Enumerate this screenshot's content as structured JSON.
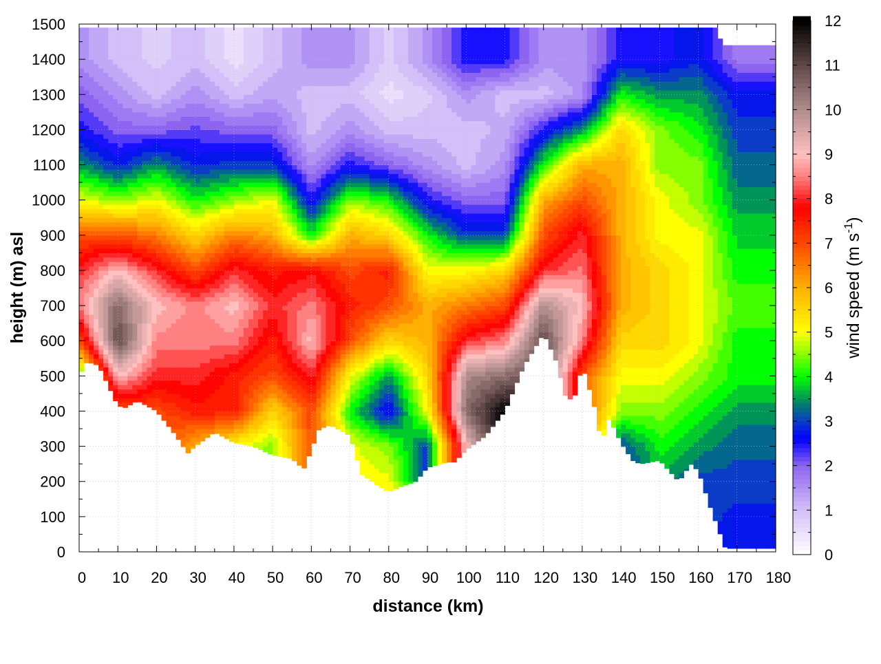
{
  "chart_data": {
    "type": "heatmap",
    "xlabel": "distance (km)",
    "ylabel": "height (m) asl",
    "colorbar_label": {
      "text": "wind speed (m s",
      "superscript": "-1",
      "close": ")"
    },
    "xlim": [
      0,
      180
    ],
    "ylim": [
      0,
      1500
    ],
    "clim": [
      0,
      12
    ],
    "x_ticks": [
      "0",
      "10",
      "20",
      "30",
      "40",
      "50",
      "60",
      "70",
      "80",
      "90",
      "100",
      "110",
      "120",
      "130",
      "140",
      "150",
      "160",
      "170",
      "180"
    ],
    "y_ticks": [
      "0",
      "100",
      "200",
      "300",
      "400",
      "500",
      "600",
      "700",
      "800",
      "900",
      "1000",
      "1100",
      "1200",
      "1300",
      "1400",
      "1500"
    ],
    "c_ticks": [
      "0",
      "1",
      "2",
      "3",
      "4",
      "5",
      "6",
      "7",
      "8",
      "9",
      "10",
      "11",
      "12"
    ],
    "grid": true,
    "colormap": [
      [
        0,
        "#ffffff"
      ],
      [
        1,
        "#d4c0f8"
      ],
      [
        2,
        "#8c64f0"
      ],
      [
        2.6,
        "#0000ff"
      ],
      [
        3,
        "#0a3cc8"
      ],
      [
        3.4,
        "#00806a"
      ],
      [
        4,
        "#00ff00"
      ],
      [
        4.6,
        "#a0ff00"
      ],
      [
        5,
        "#ffff00"
      ],
      [
        6,
        "#ffb000"
      ],
      [
        7,
        "#ff4800"
      ],
      [
        7.8,
        "#ff0000"
      ],
      [
        8.5,
        "#ff8080"
      ],
      [
        9,
        "#ffc0c0"
      ],
      [
        10,
        "#b08c8c"
      ],
      [
        11,
        "#604848"
      ],
      [
        12,
        "#000000"
      ]
    ],
    "terrain": {
      "distance": [
        0,
        2,
        5,
        10,
        12,
        15,
        20,
        25,
        28,
        30,
        35,
        40,
        45,
        50,
        55,
        58,
        60,
        62,
        65,
        70,
        73,
        77,
        80,
        83,
        87,
        90,
        95,
        97,
        100,
        105,
        110,
        115,
        120,
        123,
        126,
        128,
        130,
        133,
        135,
        137,
        140,
        143,
        145,
        150,
        155,
        158,
        160,
        163,
        167,
        170,
        180
      ],
      "height": [
        500,
        540,
        530,
        415,
        410,
        430,
        400,
        330,
        280,
        300,
        340,
        310,
        300,
        275,
        265,
        235,
        290,
        350,
        360,
        330,
        220,
        190,
        170,
        185,
        200,
        240,
        255,
        255,
        290,
        330,
        400,
        530,
        620,
        550,
        430,
        440,
        530,
        420,
        310,
        380,
        310,
        260,
        250,
        260,
        200,
        250,
        230,
        130,
        10,
        10,
        10
      ]
    },
    "data_top": {
      "distance": [
        0,
        165,
        166,
        180
      ],
      "height": [
        1490,
        1490,
        1440,
        1440
      ]
    },
    "wind_speed": {
      "distance": [
        0,
        10,
        20,
        30,
        40,
        50,
        60,
        70,
        80,
        90,
        100,
        110,
        120,
        130,
        140,
        150,
        160,
        170,
        180
      ],
      "height": [
        0,
        100,
        200,
        300,
        400,
        500,
        600,
        700,
        800,
        900,
        1000,
        1100,
        1200,
        1300,
        1400,
        1500
      ],
      "values_by_distance": [
        [
          null,
          null,
          null,
          null,
          null,
          4,
          7,
          8.5,
          8,
          7,
          5,
          3.5,
          2.5,
          2,
          1.5,
          1.5
        ],
        [
          null,
          null,
          null,
          null,
          7,
          9,
          11,
          10.5,
          9,
          7,
          4.5,
          2.8,
          2,
          1.5,
          1,
          1
        ],
        [
          null,
          null,
          null,
          null,
          7,
          8,
          8.5,
          9,
          8,
          6.5,
          5,
          3.5,
          2,
          1,
          0.8,
          0.8
        ],
        [
          null,
          null,
          null,
          6,
          7.5,
          8,
          8.5,
          8.5,
          7,
          5.5,
          4,
          2.8,
          2.2,
          1.5,
          1,
          1
        ],
        [
          null,
          null,
          null,
          5,
          7.5,
          7.5,
          8.5,
          9,
          8,
          6.5,
          4.5,
          3,
          2,
          1,
          0.5,
          0.5
        ],
        [
          null,
          null,
          null,
          4.5,
          5.5,
          7,
          7.5,
          8,
          7.5,
          6,
          5,
          3,
          2,
          1.3,
          1,
          1
        ],
        [
          null,
          null,
          null,
          7,
          7,
          8,
          9,
          8.5,
          7.8,
          4,
          2.5,
          1.5,
          1,
          1,
          1.5,
          1.5
        ],
        [
          null,
          null,
          null,
          5,
          4,
          5,
          7,
          7.5,
          7,
          6,
          4.5,
          2.5,
          1.5,
          1,
          1.5,
          1.5
        ],
        [
          null,
          null,
          5,
          4.5,
          2.5,
          3.5,
          5.5,
          7,
          7.5,
          5.5,
          4,
          2,
          1,
          0.5,
          0.8,
          0.8
        ],
        [
          null,
          null,
          null,
          3,
          5,
          5.5,
          6,
          6,
          5,
          4,
          2.5,
          1.5,
          1,
          0.8,
          1.5,
          1.5
        ],
        [
          null,
          null,
          null,
          9,
          10.5,
          10,
          8,
          6.5,
          5,
          3,
          2,
          1,
          1,
          1.5,
          2.5,
          2.5
        ],
        [
          null,
          null,
          null,
          null,
          12,
          10.5,
          8.5,
          7,
          5.5,
          3,
          2,
          1.5,
          1.2,
          1,
          2.5,
          2.5
        ],
        [
          null,
          null,
          null,
          null,
          null,
          null,
          11,
          10,
          8,
          7,
          6,
          4,
          2.5,
          1,
          1.5,
          1.5
        ],
        [
          null,
          null,
          null,
          null,
          null,
          7,
          8.5,
          9,
          8.5,
          8,
          7,
          6,
          3.5,
          1.5,
          1.5,
          1.5
        ],
        [
          null,
          null,
          null,
          3,
          4.5,
          5,
          5.5,
          6,
          6,
          6,
          6,
          6,
          5.5,
          4,
          2.5,
          2.5
        ],
        [
          null,
          null,
          3.5,
          4,
          4.5,
          5,
          5.5,
          5.5,
          5.5,
          5,
          5,
          4.5,
          4.5,
          3.5,
          2.5,
          2.5
        ],
        [
          null,
          null,
          3,
          3.5,
          4,
          4.5,
          5,
          5,
          5,
          5,
          4.5,
          4.5,
          4,
          3.5,
          2.8,
          2.8
        ],
        [
          2.6,
          2.8,
          3,
          3.2,
          3.5,
          4,
          4,
          4.3,
          4,
          3.8,
          3.5,
          3.2,
          3,
          2.7,
          1.8,
          1.8
        ],
        [
          2.6,
          2.8,
          3,
          3.2,
          3.5,
          4,
          4,
          4.3,
          4,
          3.8,
          3.5,
          3.2,
          3,
          2.7,
          1.8,
          1.8
        ]
      ]
    }
  }
}
